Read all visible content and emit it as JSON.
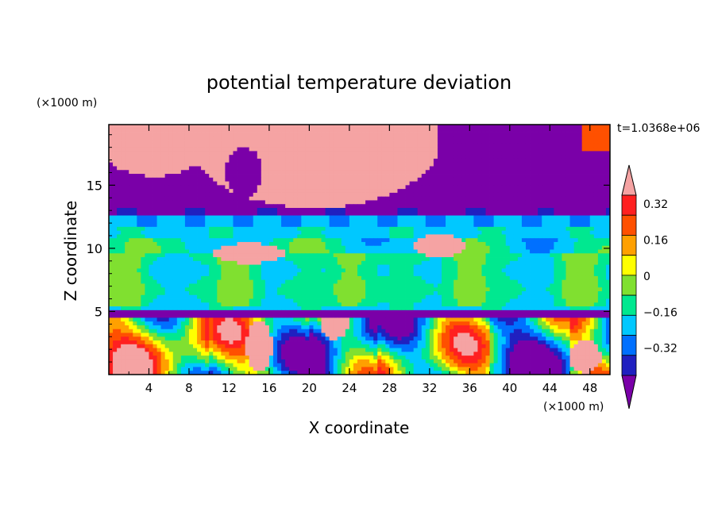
{
  "chart_data": {
    "type": "heatmap",
    "title": "potential temperature deviation",
    "xlabel": "X coordinate",
    "ylabel": "Z coordinate",
    "x_unit": "(×1000 m)",
    "y_unit": "(×1000 m)",
    "time_label": "t=1.0368e+06",
    "xlim": [
      0,
      50
    ],
    "ylim": [
      0,
      19.8
    ],
    "x_ticks": [
      4,
      8,
      12,
      16,
      20,
      24,
      28,
      32,
      36,
      40,
      44,
      48
    ],
    "y_ticks": [
      5,
      10,
      15
    ],
    "x_tick_labels": [
      "4",
      "8",
      "12",
      "16",
      "20",
      "24",
      "28",
      "32",
      "36",
      "40",
      "44",
      "48"
    ],
    "y_tick_labels": [
      "5",
      "10",
      "15"
    ],
    "colorbar": {
      "levels": [
        -0.4,
        -0.32,
        -0.24,
        -0.16,
        -0.08,
        0,
        0.08,
        0.16,
        0.24,
        0.32,
        0.4
      ],
      "labeled_levels": [
        "0.32",
        "0.16",
        "0",
        "−0.16",
        "−0.32"
      ],
      "labeled_values": [
        0.32,
        0.16,
        0,
        -0.16,
        -0.32
      ],
      "colors": [
        "#7a00a8",
        "#2020c0",
        "#0070ff",
        "#00c8ff",
        "#00e890",
        "#80e030",
        "#ffff00",
        "#ffa000",
        "#ff5000",
        "#ff2020",
        "#f5a3a3"
      ],
      "under_color": "#7a00a8",
      "over_color": "#f5a3a3"
    },
    "field_description_values": {
      "upper_layer_z_range": [
        12.5,
        19.8
      ],
      "mid_layer_z_range": [
        5,
        12.5
      ],
      "lower_layer_z_range": [
        0,
        5
      ]
    }
  }
}
